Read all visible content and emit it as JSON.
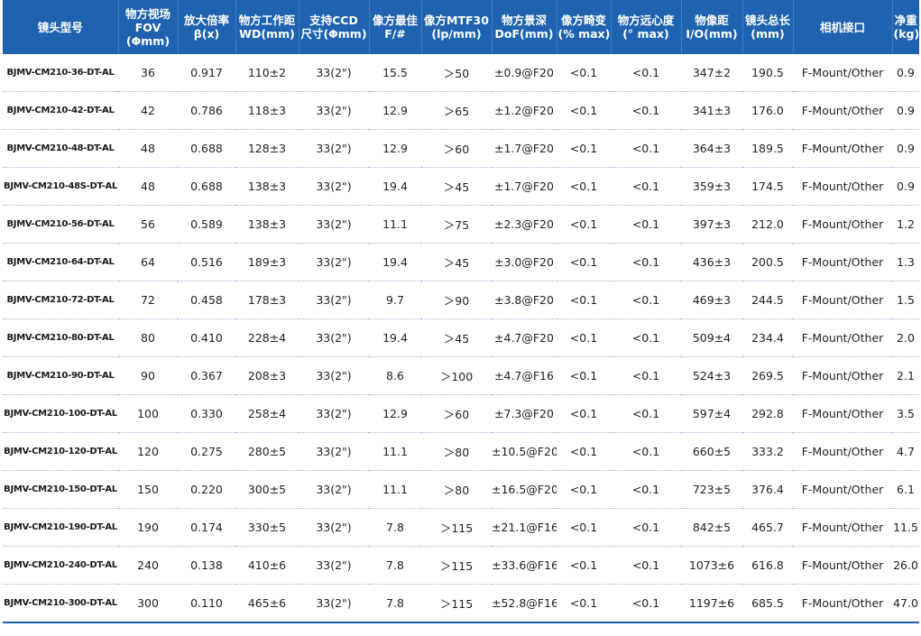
{
  "headers": [
    {
      "lines": [
        "镜头型号"
      ]
    },
    {
      "lines": [
        "物方视场",
        "FOV",
        "(Φmm)"
      ]
    },
    {
      "lines": [
        "放大倍率",
        "β(x)"
      ]
    },
    {
      "lines": [
        "物方工作距",
        "WD(mm)"
      ]
    },
    {
      "lines": [
        "支持CCD",
        "尺寸(Φmm)"
      ]
    },
    {
      "lines": [
        "像方最佳",
        "F/#"
      ]
    },
    {
      "lines": [
        "像方MTF30",
        "(lp/mm)"
      ]
    },
    {
      "lines": [
        "物方景深",
        "DoF(mm)"
      ]
    },
    {
      "lines": [
        "像方畸变",
        "(% max)"
      ]
    },
    {
      "lines": [
        "物方远心度",
        "(° max)"
      ]
    },
    {
      "lines": [
        "物像距",
        "I/O(mm)"
      ]
    },
    {
      "lines": [
        "镜头总长",
        "(mm)"
      ]
    },
    {
      "lines": [
        "相机接口"
      ]
    },
    {
      "lines": [
        "净重",
        "(kg)"
      ]
    }
  ],
  "rows": [
    [
      "BJMV-CM210-36-DT-AL",
      "36",
      "0.917",
      "110±2",
      "33(2\")",
      "15.5",
      "＞50",
      "±0.9@F20",
      "<0.1",
      "<0.1",
      "347±2",
      "190.5",
      "F-Mount/Other",
      "0.9"
    ],
    [
      "BJMV-CM210-42-DT-AL",
      "42",
      "0.786",
      "118±3",
      "33(2\")",
      "12.9",
      "＞65",
      "±1.2@F20",
      "<0.1",
      "<0.1",
      "341±3",
      "176.0",
      "F-Mount/Other",
      "0.9"
    ],
    [
      "BJMV-CM210-48-DT-AL",
      "48",
      "0.688",
      "128±3",
      "33(2\")",
      "12.9",
      "＞60",
      "±1.7@F20",
      "<0.1",
      "<0.1",
      "364±3",
      "189.5",
      "F-Mount/Other",
      "0.9"
    ],
    [
      "BJMV-CM210-48S-DT-AL",
      "48",
      "0.688",
      "138±3",
      "33(2\")",
      "19.4",
      "＞45",
      "±1.7@F20",
      "<0.1",
      "<0.1",
      "359±3",
      "174.5",
      "F-Mount/Other",
      "0.9"
    ],
    [
      "BJMV-CM210-56-DT-AL",
      "56",
      "0.589",
      "138±3",
      "33(2\")",
      "11.1",
      "＞75",
      "±2.3@F20",
      "<0.1",
      "<0.1",
      "397±3",
      "212.0",
      "F-Mount/Other",
      "1.2"
    ],
    [
      "BJMV-CM210-64-DT-AL",
      "64",
      "0.516",
      "189±3",
      "33(2\")",
      "19.4",
      "＞45",
      "±3.0@F20",
      "<0.1",
      "<0.1",
      "436±3",
      "200.5",
      "F-Mount/Other",
      "1.3"
    ],
    [
      "BJMV-CM210-72-DT-AL",
      "72",
      "0.458",
      "178±3",
      "33(2\")",
      "9.7",
      "＞90",
      "±3.8@F20",
      "<0.1",
      "<0.1",
      "469±3",
      "244.5",
      "F-Mount/Other",
      "1.5"
    ],
    [
      "BJMV-CM210-80-DT-AL",
      "80",
      "0.410",
      "228±4",
      "33(2\")",
      "19.4",
      "＞45",
      "±4.7@F20",
      "<0.1",
      "<0.1",
      "509±4",
      "234.4",
      "F-Mount/Other",
      "2.0"
    ],
    [
      "BJMV-CM210-90-DT-AL",
      "90",
      "0.367",
      "208±3",
      "33(2\")",
      "8.6",
      "＞100",
      "±4.7@F16",
      "<0.1",
      "<0.1",
      "524±3",
      "269.5",
      "F-Mount/Other",
      "2.1"
    ],
    [
      "BJMV-CM210-100-DT-AL",
      "100",
      "0.330",
      "258±4",
      "33(2\")",
      "12.9",
      "＞60",
      "±7.3@F20",
      "<0.1",
      "<0.1",
      "597±4",
      "292.8",
      "F-Mount/Other",
      "3.5"
    ],
    [
      "BJMV-CM210-120-DT-AL",
      "120",
      "0.275",
      "280±5",
      "33(2\")",
      "11.1",
      "＞80",
      "±10.5@F20",
      "<0.1",
      "<0.1",
      "660±5",
      "333.2",
      "F-Mount/Other",
      "4.7"
    ],
    [
      "BJMV-CM210-150-DT-AL",
      "150",
      "0.220",
      "300±5",
      "33(2\")",
      "11.1",
      "＞80",
      "±16.5@F20",
      "<0.1",
      "<0.1",
      "723±5",
      "376.4",
      "F-Mount/Other",
      "6.1"
    ],
    [
      "BJMV-CM210-190-DT-AL",
      "190",
      "0.174",
      "330±5",
      "33(2\")",
      "7.8",
      "＞115",
      "±21.1@F16",
      "<0.1",
      "<0.1",
      "842±5",
      "465.7",
      "F-Mount/Other",
      "11.5"
    ],
    [
      "BJMV-CM210-240-DT-AL",
      "240",
      "0.138",
      "410±6",
      "33(2\")",
      "7.8",
      "＞115",
      "±33.6@F16",
      "<0.1",
      "<0.1",
      "1073±6",
      "616.8",
      "F-Mount/Other",
      "26.0"
    ],
    [
      "BJMV-CM210-300-DT-AL",
      "300",
      "0.110",
      "465±6",
      "33(2\")",
      "7.8",
      "＞115",
      "±52.8@F16",
      "<0.1",
      "<0.1",
      "1197±6",
      "685.5",
      "F-Mount/Other",
      "47.0"
    ]
  ],
  "colors": {
    "header_bg": "#1f63b0",
    "header_text": "#ffffff",
    "rule": "#1f63b0"
  }
}
